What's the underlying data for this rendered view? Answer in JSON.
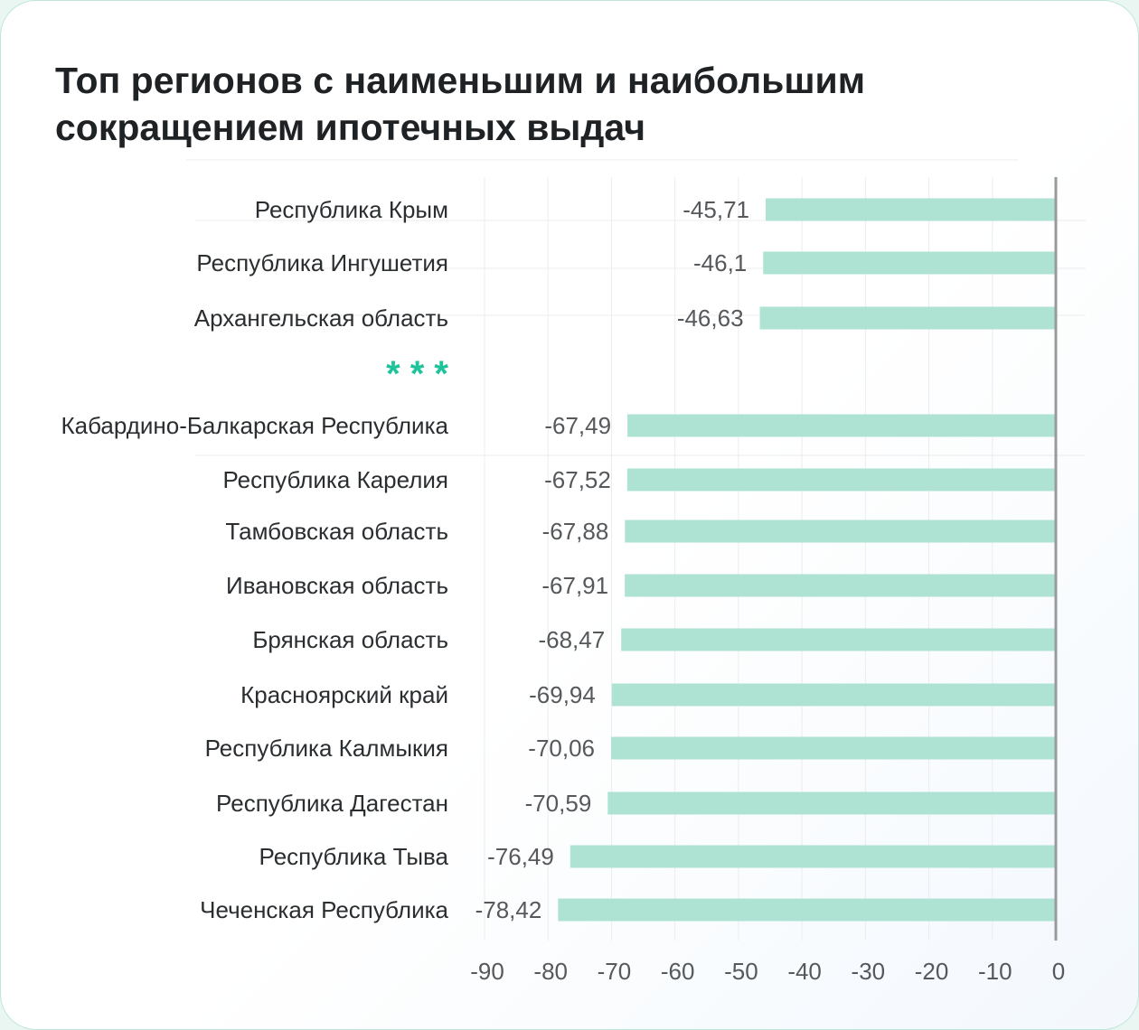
{
  "title_lines": [
    "Топ регионов с наименьшим и наибольшим",
    "сокращением ипотечных выдач"
  ],
  "colors": {
    "bar": "#aee3d4",
    "axis": "#9a9a9a",
    "grid": "#ececec",
    "separator": "#1ec39a"
  },
  "separator_label": "* * *",
  "chart_data": {
    "type": "bar",
    "orientation": "horizontal",
    "categories": [
      "Республика Крым",
      "Республика Ингушетия",
      "Архангельская область",
      "Кабардино-Балкарская Республика",
      "Республика Карелия",
      "Тамбовская область",
      "Ивановская область",
      "Брянская область",
      "Красноярский край",
      "Республика Калмыкия",
      "Республика Дагестан",
      "Республика Тыва",
      "Чеченская Республика"
    ],
    "values": [
      -45.71,
      -46.1,
      -46.63,
      -67.49,
      -67.52,
      -67.88,
      -67.91,
      -68.47,
      -69.94,
      -70.06,
      -70.59,
      -76.49,
      -78.42
    ],
    "value_labels": [
      "-45,71",
      "-46,1",
      "-46,63",
      "-67,49",
      "-67,52",
      "-67,88",
      "-67,91",
      "-68,47",
      "-69,94",
      "-70,06",
      "-70,59",
      "-76,49",
      "-78,42"
    ],
    "xlim": [
      -90,
      0
    ],
    "xticks": [
      -90,
      -80,
      -70,
      -60,
      -50,
      -40,
      -30,
      -20,
      -10,
      0
    ],
    "xtick_labels": [
      "-90",
      "-80",
      "-70",
      "-60",
      "-50",
      "-40",
      "-30",
      "-20",
      "-10",
      "0"
    ],
    "grid": true,
    "title": "Топ регионов с наименьшим и наибольшим сокращением ипотечных выдач",
    "xlabel": "",
    "ylabel": ""
  }
}
